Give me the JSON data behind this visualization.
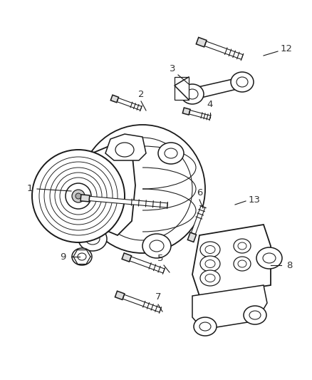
{
  "background_color": "#ffffff",
  "line_color": "#1a1a1a",
  "label_color": "#333333",
  "lw": 1.1,
  "figsize": [
    4.38,
    5.33
  ],
  "dpi": 100,
  "xlim": [
    0,
    438
  ],
  "ylim": [
    0,
    533
  ]
}
